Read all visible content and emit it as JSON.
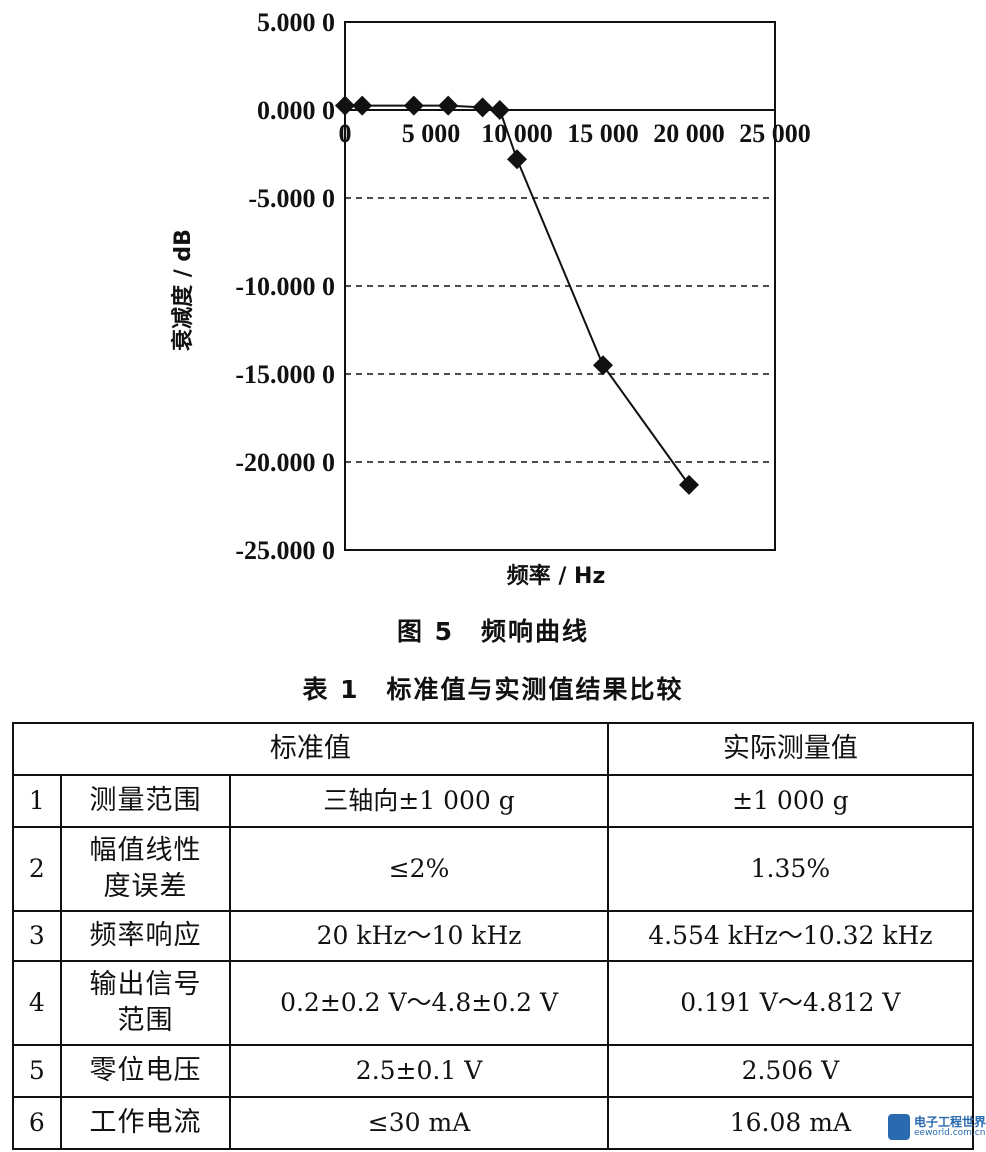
{
  "chart_data": {
    "type": "line",
    "x": [
      0,
      1000,
      4000,
      6000,
      8000,
      9000,
      10000,
      15000,
      20000
    ],
    "series": [
      {
        "values": [
          0.25,
          0.25,
          0.25,
          0.25,
          0.15,
          0.0,
          -2.8,
          -14.5,
          -21.3
        ]
      }
    ],
    "xlim": [
      0,
      25000
    ],
    "ylim": [
      -25,
      5
    ],
    "x_ticks": [
      0,
      5000,
      10000,
      15000,
      20000,
      25000
    ],
    "x_tick_labels": [
      "0",
      "5 000",
      "10 000",
      "15 000",
      "20 000",
      "25 000"
    ],
    "y_ticks": [
      5,
      0,
      -5,
      -10,
      -15,
      -20,
      -25
    ],
    "y_tick_labels": [
      "5.000 0",
      "0.000 0",
      "-5.000 0",
      "-10.000 0",
      "-15.000 0",
      "-20.000 0",
      "-25.000 0"
    ],
    "xlabel": "频率 / Hz",
    "ylabel": "衰减度 / dB",
    "grid": "dashed horizontal",
    "marker": "diamond",
    "line_color": "#111111"
  },
  "figure_caption": "图 5　频响曲线",
  "table_caption": "表 1　标准值与实测值结果比较",
  "table": {
    "header": {
      "standard": "标准值",
      "measured": "实际测量值"
    },
    "rows": [
      {
        "index": "1",
        "item": "测量范围",
        "standard": "三轴向±1 000 g",
        "measured": "±1 000 g"
      },
      {
        "index": "2",
        "item": "幅值线性度误差",
        "item_line1": "幅值线性",
        "item_line2": "度误差",
        "standard": "≤2%",
        "measured": "1.35%"
      },
      {
        "index": "3",
        "item": "频率响应",
        "standard": "20 kHz～10 kHz",
        "measured": "4.554 kHz～10.32 kHz"
      },
      {
        "index": "4",
        "item": "输出信号范围",
        "item_line1": "输出信号",
        "item_line2": "范围",
        "standard": "0.2±0.2 V～4.8±0.2 V",
        "measured": "0.191 V～4.812 V"
      },
      {
        "index": "5",
        "item": "零位电压",
        "standard": "2.5±0.1 V",
        "measured": "2.506 V"
      },
      {
        "index": "6",
        "item": "工作电流",
        "standard": "≤30 mA",
        "measured": "16.08 mA"
      }
    ]
  },
  "watermark": {
    "title": "电子工程世界",
    "site": "eeworld.com.cn"
  }
}
